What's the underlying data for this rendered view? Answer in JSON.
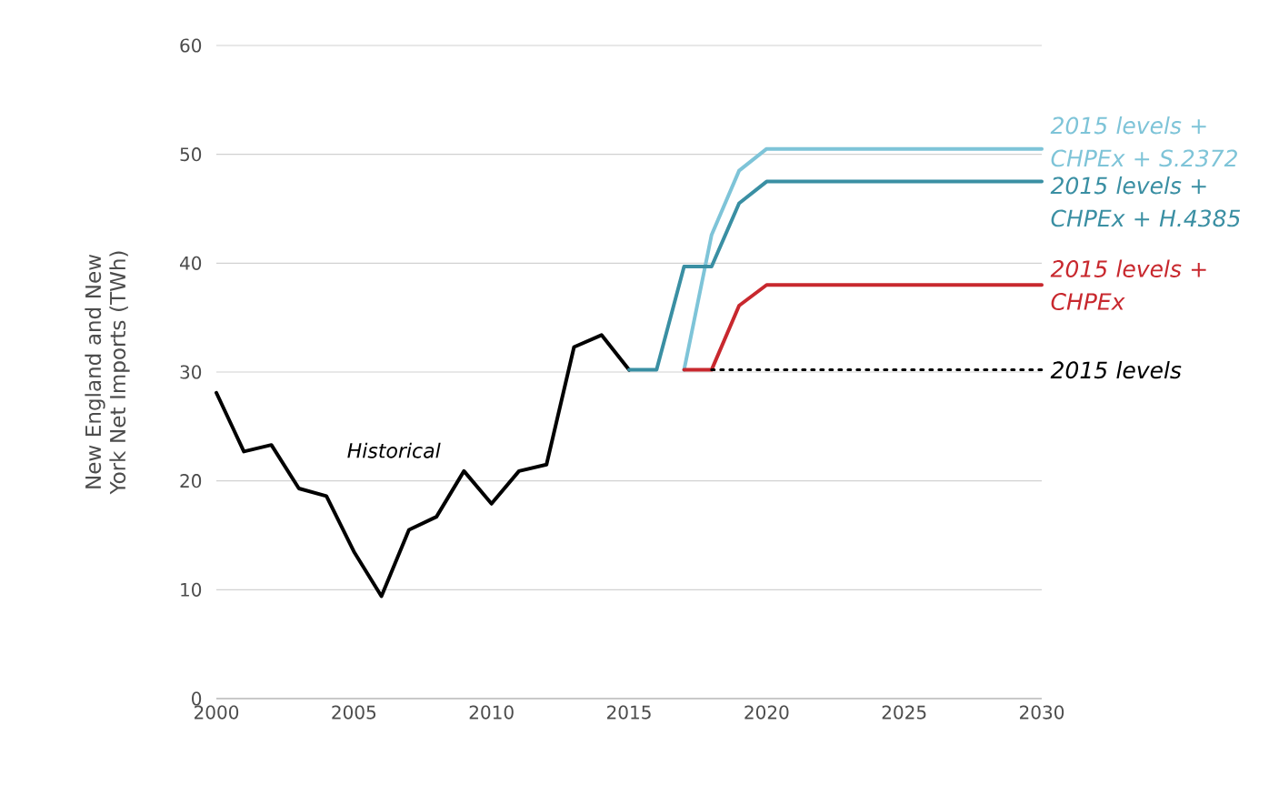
{
  "chart_data": {
    "type": "line",
    "ylabel": "New England and New York Net Imports (TWh)",
    "xlim": [
      2000,
      2030
    ],
    "xticks": [
      2000,
      2005,
      2010,
      2015,
      2020,
      2025,
      2030
    ],
    "ylim": [
      0,
      60
    ],
    "yticks": [
      0,
      10,
      20,
      30,
      40,
      50,
      60
    ],
    "grid": "y",
    "legend": false,
    "marker": "none",
    "annotations": [
      "*Historical*"
    ],
    "series": [
      {
        "color": "#000000",
        "x": [
          2000,
          2001,
          2002,
          2003,
          2004,
          2005,
          2006,
          2007,
          2008,
          2009,
          2010,
          2011,
          2012,
          2013,
          2014,
          2015
        ],
        "values": [
          28.1,
          22.7,
          23.3,
          19.3,
          18.6,
          13.5,
          9.4,
          15.5,
          16.7,
          20.9,
          17.9,
          20.9,
          21.5,
          32.3,
          33.4,
          30.2
        ]
      },
      {
        "name": "*2015 levels + CHPEx + S.2372*",
        "color": "#7ec4d8",
        "x": [
          2017,
          2018,
          2019,
          2020,
          2030
        ],
        "values": [
          30.2,
          42.6,
          48.5,
          50.5,
          50.5
        ]
      },
      {
        "name": "*2015 levels + CHPEx + H.4385*",
        "color": "#3a8fa3",
        "x": [
          2015,
          2016,
          2017,
          2018,
          2019,
          2020,
          2030
        ],
        "values": [
          30.2,
          30.2,
          39.7,
          39.7,
          45.5,
          47.5,
          47.5
        ]
      },
      {
        "name": "*2015 levels + CHPEx*",
        "color": "#c8282e",
        "x": [
          2017,
          2018,
          2019,
          2020,
          2030
        ],
        "values": [
          30.2,
          30.2,
          36.1,
          38.0,
          38.0
        ]
      },
      {
        "name": "*2015 levels*",
        "color": "#000000",
        "line_style": "dotted",
        "x": [
          2018,
          2030
        ],
        "values": [
          30.2,
          30.2
        ]
      }
    ]
  }
}
